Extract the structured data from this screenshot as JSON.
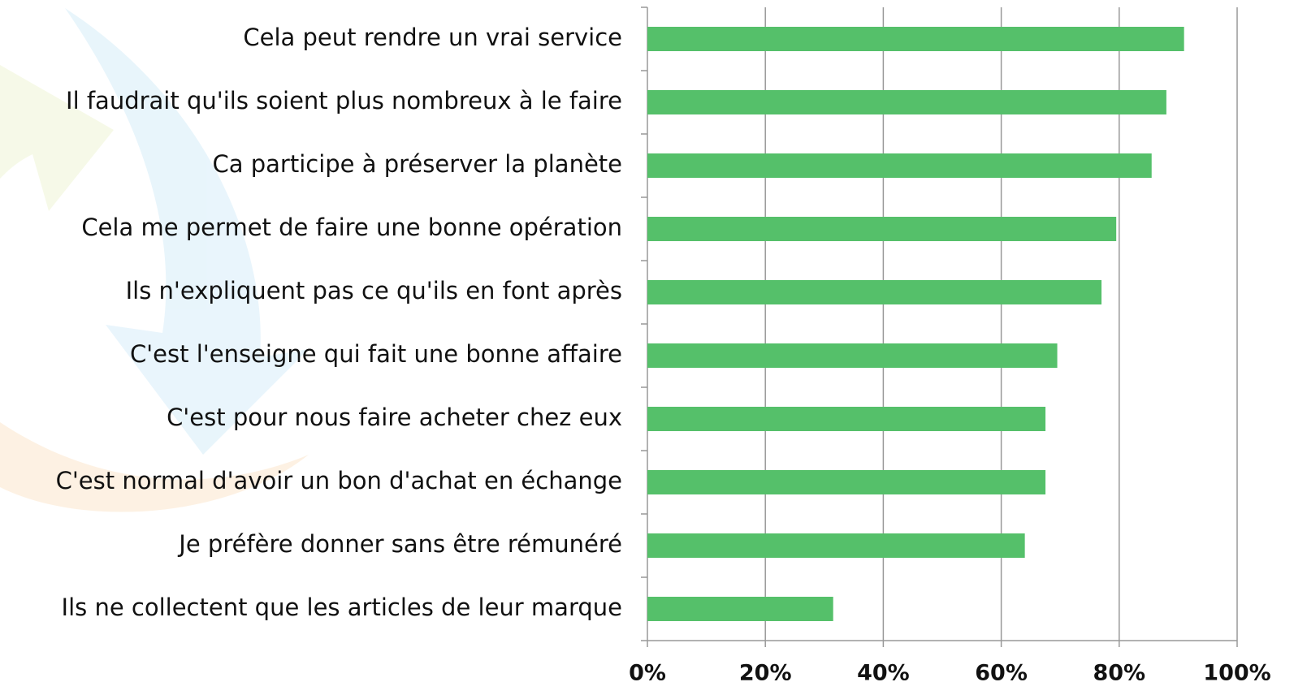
{
  "chart_data": {
    "type": "bar",
    "orientation": "horizontal",
    "categories": [
      "Cela peut rendre un vrai service",
      "Il faudrait qu'ils soient plus nombreux à le faire",
      "Ca participe à préserver la planète",
      "Cela me permet de faire une bonne opération",
      "Ils n'expliquent pas ce qu'ils en font après",
      "C'est l'enseigne qui fait une bonne affaire",
      "C'est pour nous faire acheter chez eux",
      "C'est normal d'avoir un bon d'achat en échange",
      "Je préfère donner sans être rémunéré",
      "Ils ne collectent que les articles de leur marque"
    ],
    "values": [
      91,
      88,
      85.5,
      79.5,
      77,
      69.5,
      67.5,
      67.5,
      64,
      31.5
    ],
    "color": "#55c06a",
    "xlim": [
      0,
      100
    ],
    "xticks": [
      {
        "value": 0,
        "label": "0%"
      },
      {
        "value": 20,
        "label": "20%"
      },
      {
        "value": 40,
        "label": "40%"
      },
      {
        "value": 60,
        "label": "60%"
      },
      {
        "value": 80,
        "label": "80%"
      },
      {
        "value": 100,
        "label": "100%"
      }
    ],
    "grid": true
  }
}
